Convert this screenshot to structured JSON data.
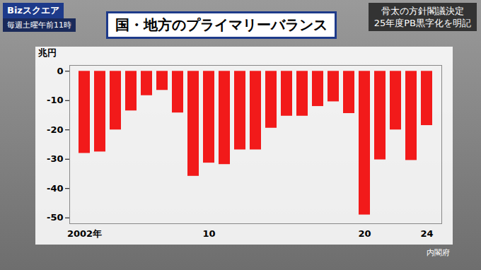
{
  "chart_data": {
    "type": "bar",
    "title": "国・地方のプライマリーバランス",
    "annotations": [
      "Bizスクエア",
      "毎週土曜午前11時",
      "骨太の方針閣議決定",
      "25年度PB黒字化を明記"
    ],
    "source": "内閣府",
    "ylabel": "兆円",
    "categories": [
      "2002年",
      null,
      null,
      null,
      null,
      null,
      null,
      null,
      "10",
      null,
      null,
      null,
      null,
      null,
      null,
      null,
      null,
      null,
      "20",
      null,
      null,
      null,
      "24"
    ],
    "values": [
      -28,
      -27.5,
      -20,
      -13.5,
      -8.3,
      -6.5,
      -14.2,
      -35.8,
      -31.3,
      -31.8,
      -26.8,
      -26.8,
      -19.4,
      -15.3,
      -15.3,
      -12,
      -10.4,
      -14.4,
      -49,
      -30.2,
      -20,
      -30.4,
      -18.5
    ],
    "color": "#f21a1a",
    "ylim": [
      -52,
      2
    ],
    "yticks": [
      0,
      -10,
      -20,
      -30,
      -40,
      -50
    ],
    "grid": false
  }
}
